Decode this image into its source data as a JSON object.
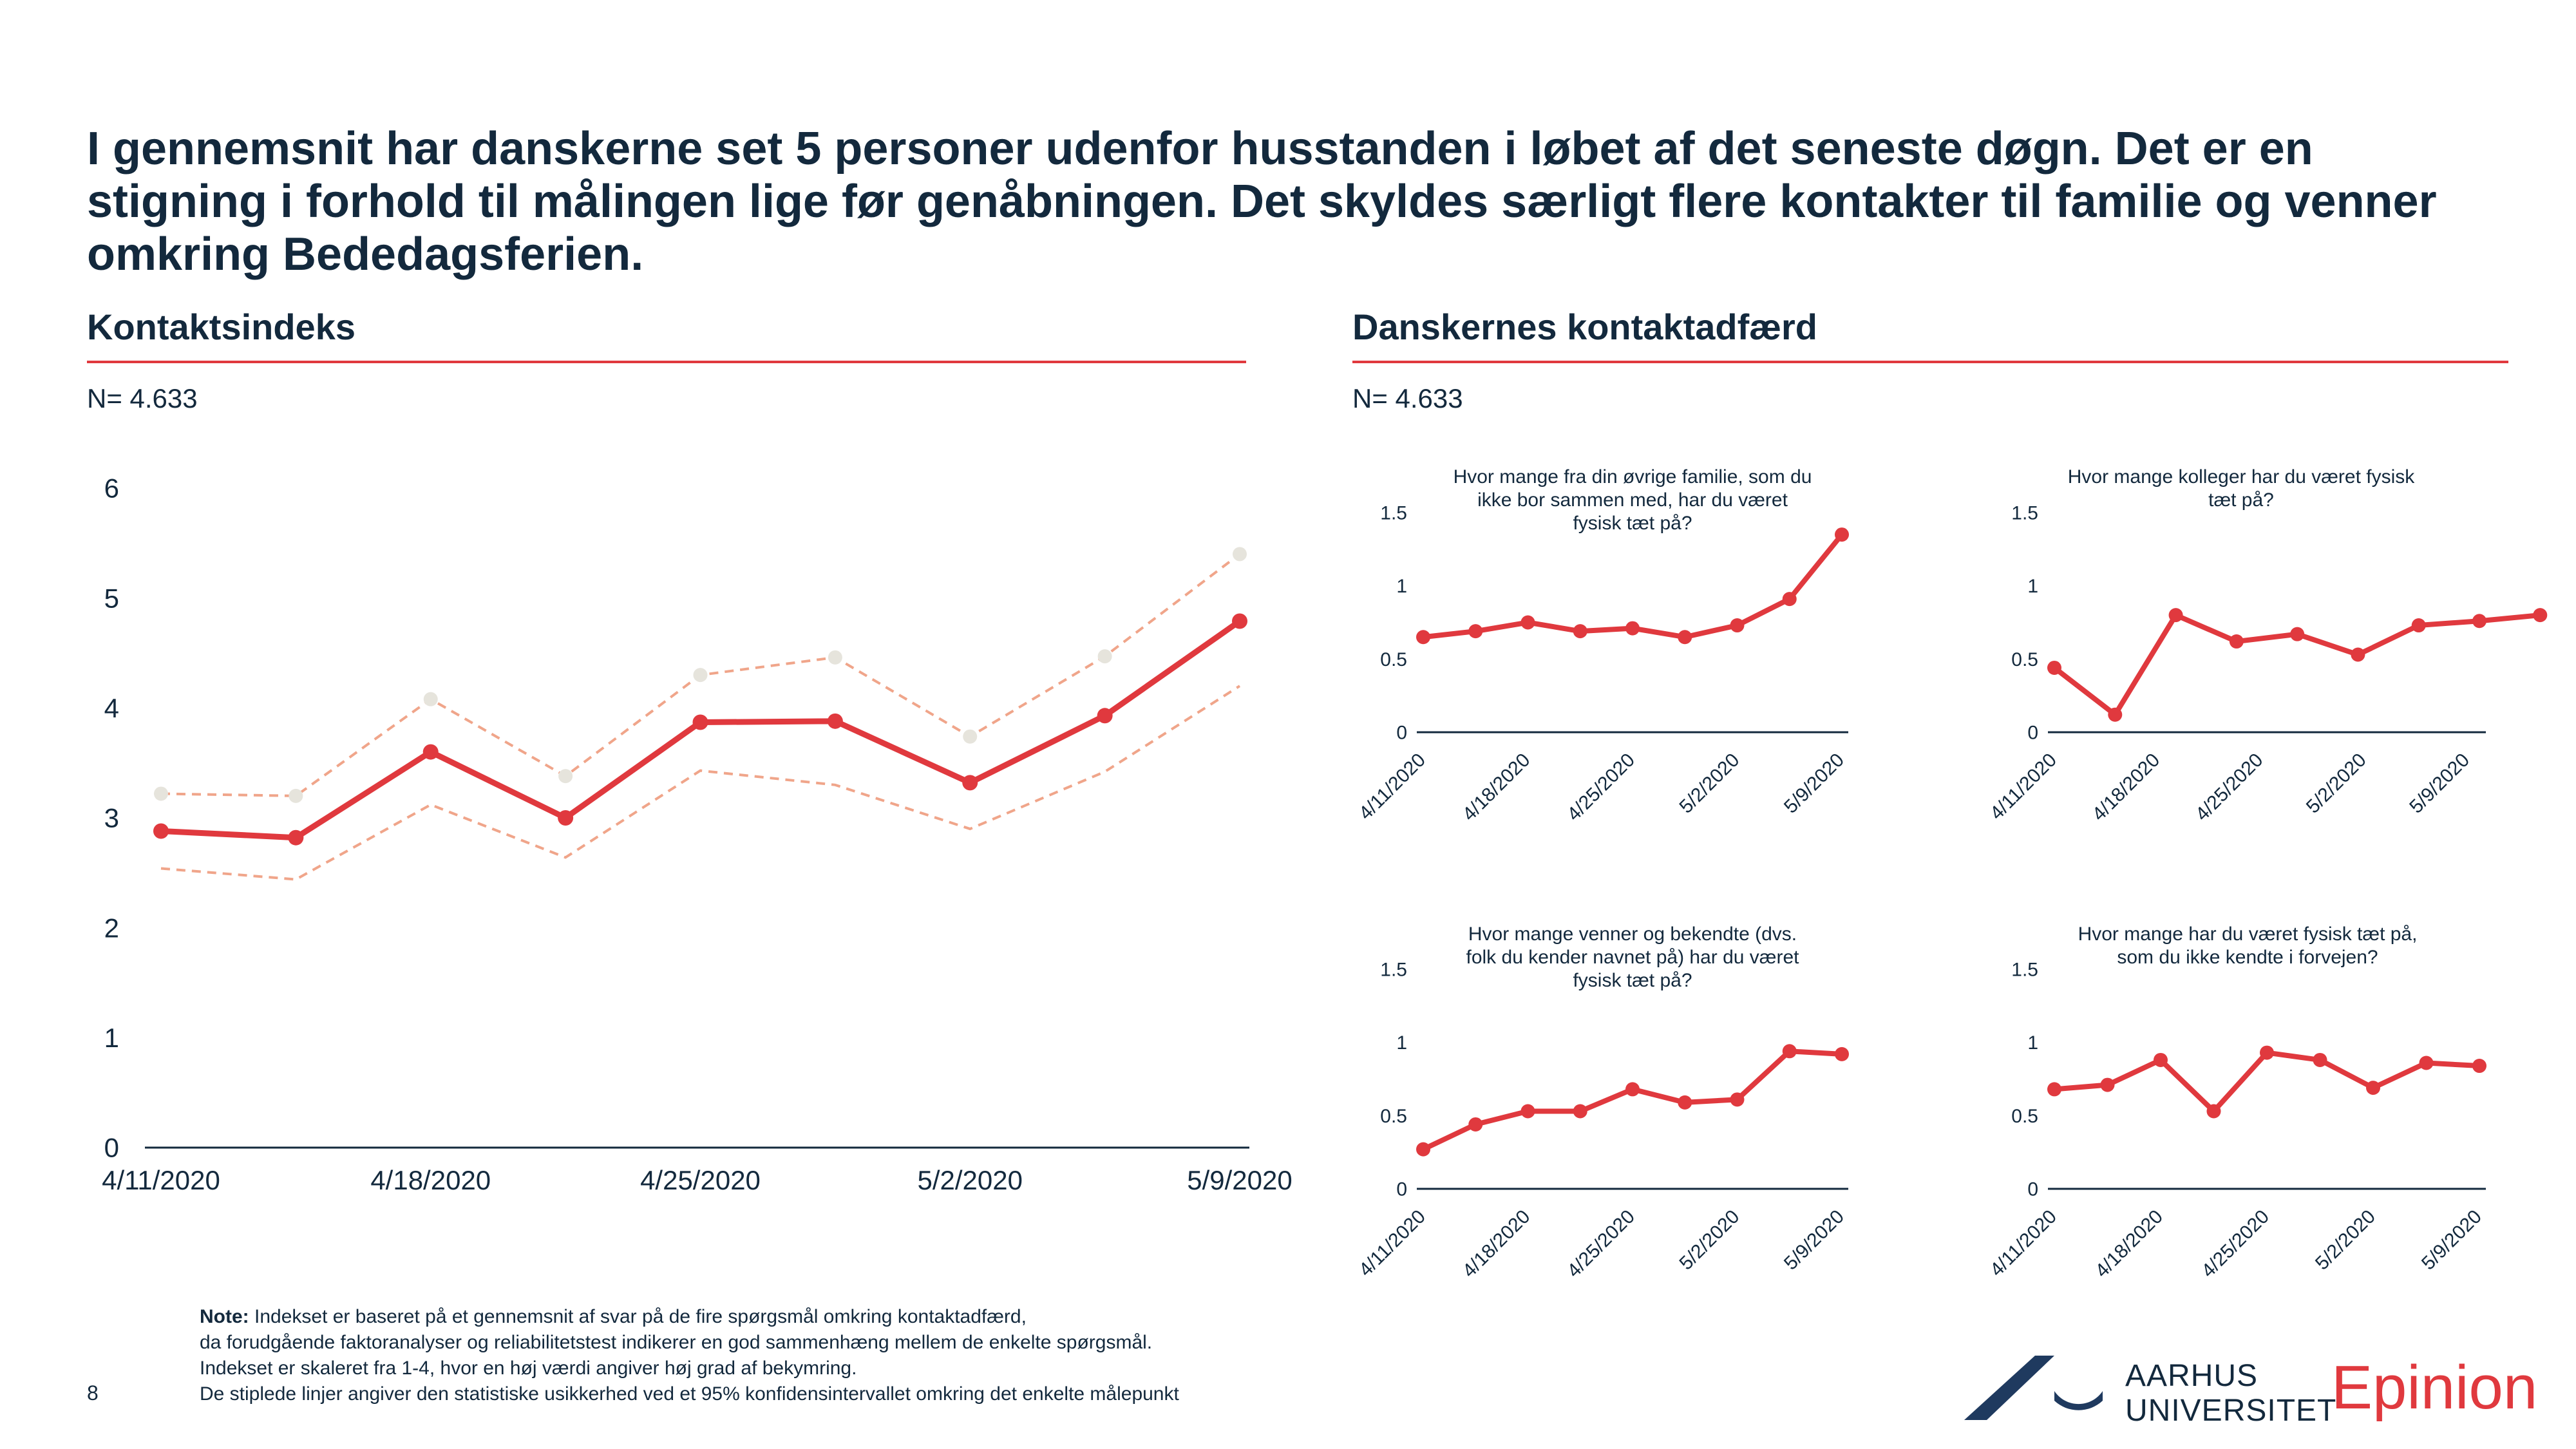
{
  "headline": "I gennemsnit har danskerne set 5 personer udenfor husstanden i løbet af det seneste døgn. Det er en stigning i forhold til målingen lige før genåbningen. Det skyldes særligt flere kontakter til familie og venner omkring Bededagsferien.",
  "left_section": {
    "title": "Kontaktsindeks",
    "n_label": "N= 4.633"
  },
  "right_section": {
    "title": "Danskernes kontaktadfærd",
    "n_label": "N= 4.633"
  },
  "colors": {
    "main": "#e0393e",
    "ci": "#f0a58a",
    "ci_marker": "#e6e4dc",
    "axis": "#13293d"
  },
  "note": {
    "label": "Note:",
    "line1": "Indekset er baseret på et gennemsnit af svar på de fire spørgsmål omkring kontaktadfærd,",
    "line2": "da forudgående faktoranalyser og reliabilitetstest indikerer en god sammenhæng mellem de enkelte spørgsmål.",
    "line3": "Indekset er skaleret fra 1-4, hvor en høj værdi angiver høj grad af bekymring.",
    "line4": "De stiplede linjer angiver den statistiske usikkerhed ved et 95% konfidensintervallet omkring det enkelte målepunkt"
  },
  "page_number": "8",
  "logos": {
    "au_line1": "AARHUS",
    "au_line2": "UNIVERSITET",
    "epinion": "Epinion"
  },
  "chart_data": [
    {
      "id": "index",
      "type": "line",
      "title": "",
      "n": 9,
      "xtick_labels": [
        "4/11/2020",
        "4/18/2020",
        "4/25/2020",
        "5/2/2020",
        "5/9/2020"
      ],
      "xtick_positions": [
        0,
        2,
        4,
        6,
        8
      ],
      "yticks": [
        0,
        1,
        2,
        3,
        4,
        5,
        6
      ],
      "ylim": [
        0,
        6
      ],
      "series": [
        {
          "role": "main",
          "values": [
            2.88,
            2.82,
            3.6,
            3.0,
            3.87,
            3.88,
            3.32,
            3.93,
            4.79
          ]
        },
        {
          "role": "upper",
          "values": [
            3.22,
            3.2,
            4.08,
            3.38,
            4.3,
            4.46,
            3.74,
            4.47,
            5.4
          ]
        },
        {
          "role": "lower",
          "values": [
            2.54,
            2.44,
            3.12,
            2.64,
            3.43,
            3.3,
            2.9,
            3.42,
            4.2
          ]
        }
      ]
    },
    {
      "id": "family",
      "type": "line",
      "title": [
        "Hvor mange fra din øvrige familie, som du",
        "ikke bor sammen med, har du været",
        "fysisk tæt på?"
      ],
      "n": 9,
      "xtick_labels": [
        "4/11/2020",
        "4/18/2020",
        "4/25/2020",
        "5/2/2020",
        "5/9/2020"
      ],
      "xtick_positions": [
        0,
        2,
        4,
        6,
        8
      ],
      "yticks": [
        0,
        0.5,
        1,
        1.5
      ],
      "ylim": [
        0,
        1.5
      ],
      "series": [
        {
          "role": "main",
          "values": [
            0.65,
            0.69,
            0.75,
            0.69,
            0.71,
            0.65,
            0.73,
            0.91,
            1.35
          ]
        }
      ]
    },
    {
      "id": "colleagues",
      "type": "line",
      "title": [
        "Hvor mange kolleger har du været fysisk",
        "tæt på?"
      ],
      "n": 8,
      "xtick_labels": [
        "4/11/2020",
        "4/18/2020",
        "4/25/2020",
        "5/2/2020",
        "5/9/2020"
      ],
      "xtick_positions": [
        0,
        1.7,
        3.4,
        5.1,
        6.8
      ],
      "yticks": [
        0,
        0.5,
        1,
        1.5
      ],
      "ylim": [
        0,
        1.5
      ],
      "series": [
        {
          "role": "main",
          "values": [
            0.44,
            0.12,
            0.8,
            0.62,
            0.67,
            0.53,
            0.73,
            0.76,
            0.8
          ]
        }
      ]
    },
    {
      "id": "friends",
      "type": "line",
      "title": [
        "Hvor mange venner og bekendte (dvs.",
        "folk du kender navnet på) har du været",
        "fysisk tæt på?"
      ],
      "n": 9,
      "xtick_labels": [
        "4/11/2020",
        "4/18/2020",
        "4/25/2020",
        "5/2/2020",
        "5/9/2020"
      ],
      "xtick_positions": [
        0,
        2,
        4,
        6,
        8
      ],
      "yticks": [
        0,
        0.5,
        1,
        1.5
      ],
      "ylim": [
        0,
        1.5
      ],
      "series": [
        {
          "role": "main",
          "values": [
            0.27,
            0.44,
            0.53,
            0.53,
            0.68,
            0.59,
            0.61,
            0.94,
            0.92
          ]
        }
      ]
    },
    {
      "id": "strangers",
      "type": "line",
      "title": [
        "Hvor mange har du været fysisk tæt på,",
        "som du ikke kendte i forvejen?"
      ],
      "n": 9,
      "xtick_labels": [
        "4/11/2020",
        "4/18/2020",
        "4/25/2020",
        "5/2/2020",
        "5/9/2020"
      ],
      "xtick_positions": [
        0,
        2,
        4,
        6,
        8
      ],
      "yticks": [
        0,
        0.5,
        1,
        1.5
      ],
      "ylim": [
        0,
        1.5
      ],
      "series": [
        {
          "role": "main",
          "values": [
            0.68,
            0.71,
            0.88,
            0.53,
            0.93,
            0.88,
            0.69,
            0.86,
            0.84
          ]
        }
      ]
    }
  ]
}
